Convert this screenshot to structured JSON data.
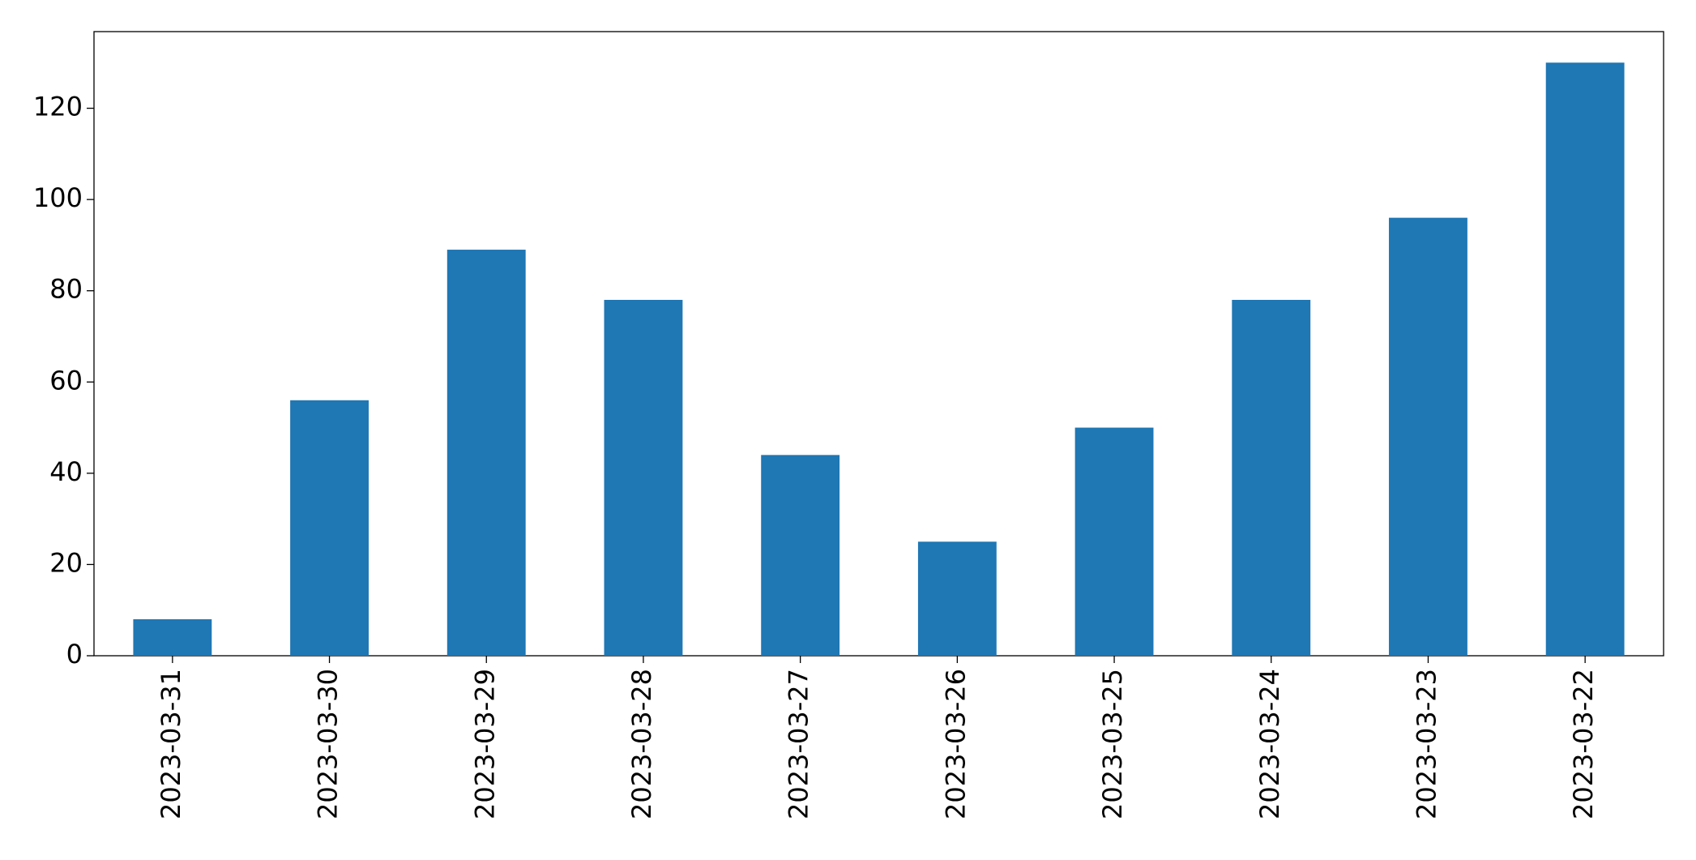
{
  "chart_data": {
    "type": "bar",
    "categories": [
      "2023-03-31",
      "2023-03-30",
      "2023-03-29",
      "2023-03-28",
      "2023-03-27",
      "2023-03-26",
      "2023-03-25",
      "2023-03-24",
      "2023-03-23",
      "2023-03-22"
    ],
    "values": [
      8,
      56,
      89,
      78,
      44,
      25,
      50,
      78,
      96,
      130
    ],
    "color": "#1f77b4",
    "ylim": [
      0,
      136.8
    ],
    "yticks": [
      0,
      20,
      40,
      60,
      80,
      100,
      120
    ],
    "grid": false
  }
}
